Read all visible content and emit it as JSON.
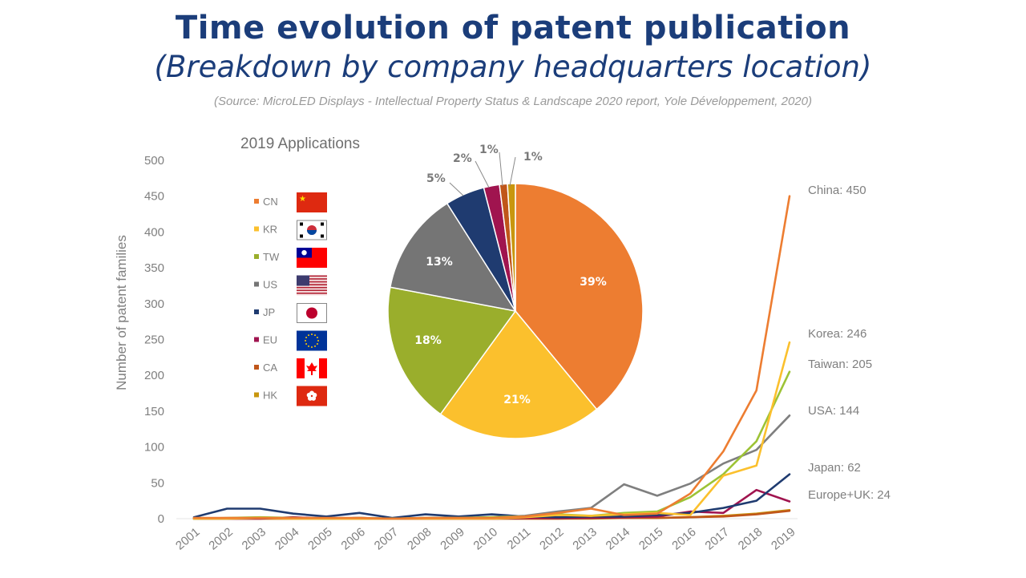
{
  "header": {
    "title": "Time evolution of patent publication",
    "subtitle": "(Breakdown by company headquarters location)",
    "source": "(Source: MicroLED Displays - Intellectual Property Status & Landscape 2020 report, Yole Développement, 2020)"
  },
  "chart_data": [
    {
      "type": "line",
      "title": "Time evolution of patent publication",
      "xlabel": "",
      "ylabel": "Number of patent families",
      "ylim": [
        0,
        500
      ],
      "yticks": [
        0,
        50,
        100,
        150,
        200,
        250,
        300,
        350,
        400,
        450,
        500
      ],
      "x": [
        "2001",
        "2002",
        "2003",
        "2004",
        "2005",
        "2006",
        "2007",
        "2008",
        "2009",
        "2010",
        "2011",
        "2012",
        "2013",
        "2014",
        "2015",
        "2016",
        "2017",
        "2018",
        "2019"
      ],
      "grid": false,
      "legend": "none",
      "series": [
        {
          "name": "China",
          "end_label": "China: 450",
          "color": "#ed7d31",
          "values": [
            1,
            1,
            1,
            1,
            1,
            1,
            0,
            1,
            1,
            1,
            3,
            8,
            14,
            5,
            7,
            35,
            94,
            179,
            450
          ]
        },
        {
          "name": "Korea",
          "end_label": "Korea: 246",
          "color": "#fbc02d",
          "values": [
            0,
            0,
            1,
            0,
            0,
            0,
            0,
            0,
            0,
            0,
            2,
            5,
            4,
            6,
            8,
            5,
            60,
            74,
            246
          ]
        },
        {
          "name": "Taiwan",
          "end_label": "Taiwan: 205",
          "color": "#9dc336",
          "values": [
            0,
            1,
            2,
            1,
            0,
            1,
            0,
            1,
            1,
            2,
            3,
            6,
            4,
            8,
            10,
            30,
            62,
            108,
            205
          ]
        },
        {
          "name": "USA",
          "end_label": "USA: 144",
          "color": "#7f7f7f",
          "values": [
            0,
            0,
            1,
            1,
            0,
            1,
            0,
            1,
            1,
            2,
            4,
            10,
            15,
            48,
            32,
            49,
            77,
            96,
            144
          ]
        },
        {
          "name": "Japan",
          "end_label": "Japan: 62",
          "color": "#1f3b70",
          "values": [
            2,
            14,
            14,
            7,
            3,
            8,
            1,
            6,
            3,
            6,
            3,
            2,
            3,
            3,
            5,
            8,
            15,
            25,
            62
          ]
        },
        {
          "name": "Europe+UK",
          "end_label": "Europe+UK: 24",
          "color": "#a0144f",
          "values": [
            0,
            0,
            0,
            2,
            0,
            1,
            0,
            0,
            0,
            0,
            1,
            1,
            1,
            2,
            3,
            10,
            8,
            40,
            24
          ]
        },
        {
          "name": "Canada",
          "end_label": "",
          "color": "#c0561a",
          "values": [
            0,
            0,
            0,
            0,
            0,
            0,
            0,
            0,
            0,
            0,
            0,
            0,
            1,
            1,
            1,
            2,
            3,
            6,
            11
          ]
        },
        {
          "name": "Hong Kong",
          "end_label": "",
          "color": "#c8960e",
          "values": [
            0,
            0,
            0,
            0,
            0,
            0,
            0,
            0,
            0,
            0,
            0,
            0,
            0,
            1,
            1,
            2,
            4,
            7,
            12
          ]
        }
      ]
    },
    {
      "type": "pie",
      "title": "2019 Applications",
      "legend": "left",
      "slices": [
        {
          "code": "CN",
          "value": 39,
          "label": "39%",
          "color": "#ed7d31",
          "flag": "china-flag"
        },
        {
          "code": "KR",
          "value": 21,
          "label": "21%",
          "color": "#fbc02d",
          "flag": "south-korea-flag"
        },
        {
          "code": "TW",
          "value": 18,
          "label": "18%",
          "color": "#9aae2c",
          "flag": "taiwan-flag"
        },
        {
          "code": "US",
          "value": 13,
          "label": "13%",
          "color": "#757575",
          "flag": "usa-flag"
        },
        {
          "code": "JP",
          "value": 5,
          "label": "5%",
          "color": "#1f3b70",
          "flag": "japan-flag"
        },
        {
          "code": "EU",
          "value": 2,
          "label": "2%",
          "color": "#a0144f",
          "flag": "eu-flag"
        },
        {
          "code": "CA",
          "value": 1,
          "label": "1%",
          "color": "#c0561a",
          "flag": "canada-flag"
        },
        {
          "code": "HK",
          "value": 1,
          "label": "1%",
          "color": "#c8960e",
          "flag": "hong-kong-flag"
        }
      ]
    }
  ]
}
